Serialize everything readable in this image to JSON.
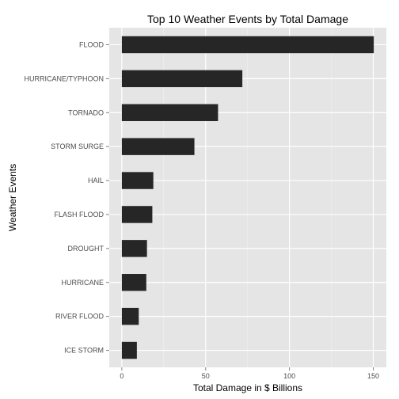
{
  "colors": {
    "panel_bg": "#e5e5e5",
    "grid_major": "#ffffff",
    "grid_minor": "#f2f2f2",
    "bar": "#262626",
    "tick": "#7f7f7f"
  },
  "chart_data": {
    "type": "bar",
    "orientation": "horizontal",
    "title": "Top 10 Weather Events by Total Damage",
    "xlabel": "Total Damage in $ Billions",
    "ylabel": "Weather Events",
    "categories": [
      "FLOOD",
      "HURRICANE/TYPHOON",
      "TORNADO",
      "STORM SURGE",
      "HAIL",
      "FLASH FLOOD",
      "DROUGHT",
      "HURRICANE",
      "RIVER FLOOD",
      "ICE STORM"
    ],
    "values": [
      150.3,
      71.9,
      57.4,
      43.3,
      18.8,
      18.2,
      15.0,
      14.6,
      10.1,
      8.97
    ],
    "xlim": [
      -7.5,
      157.8
    ],
    "xticks": [
      0,
      50,
      100,
      150
    ],
    "grid": true,
    "legend": "none"
  }
}
